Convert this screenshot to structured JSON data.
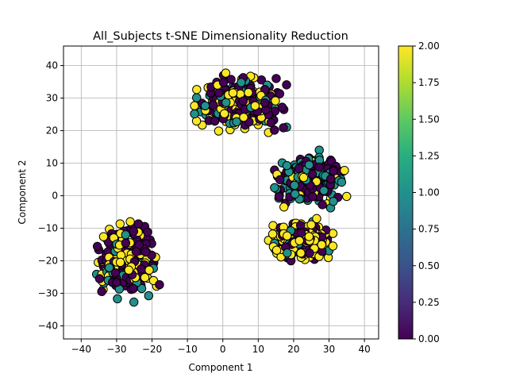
{
  "chart_data": {
    "type": "scatter",
    "title": "All_Subjects t-SNE Dimensionality Reduction",
    "xlabel": "Component 1",
    "ylabel": "Component 2",
    "xlim": [
      -45,
      44
    ],
    "ylim": [
      -44,
      46
    ],
    "xticks": [
      -40,
      -30,
      -20,
      -10,
      0,
      10,
      20,
      30,
      40
    ],
    "yticks": [
      -40,
      -30,
      -20,
      -10,
      0,
      10,
      20,
      30,
      40
    ],
    "grid": true,
    "colormap": "viridis",
    "marker_edge_color": "#000000",
    "colorbar": {
      "min": 0.0,
      "max": 2.0,
      "ticks": [
        "0.00",
        "0.25",
        "0.50",
        "0.75",
        "1.00",
        "1.25",
        "1.50",
        "1.75",
        "2.00"
      ]
    },
    "clusters": [
      {
        "center": [
          -27,
          -20
        ],
        "spread": [
          7,
          9
        ],
        "label_shares": [
          0.5,
          0.15,
          0.35
        ]
      },
      {
        "center": [
          5,
          28
        ],
        "spread": [
          10,
          7
        ],
        "label_shares": [
          0.45,
          0.2,
          0.35
        ]
      },
      {
        "center": [
          25,
          5
        ],
        "spread": [
          8,
          6
        ],
        "label_shares": [
          0.45,
          0.45,
          0.1
        ]
      },
      {
        "center": [
          22,
          -14
        ],
        "spread": [
          7,
          5
        ],
        "label_shares": [
          0.25,
          0.15,
          0.6
        ]
      }
    ]
  }
}
